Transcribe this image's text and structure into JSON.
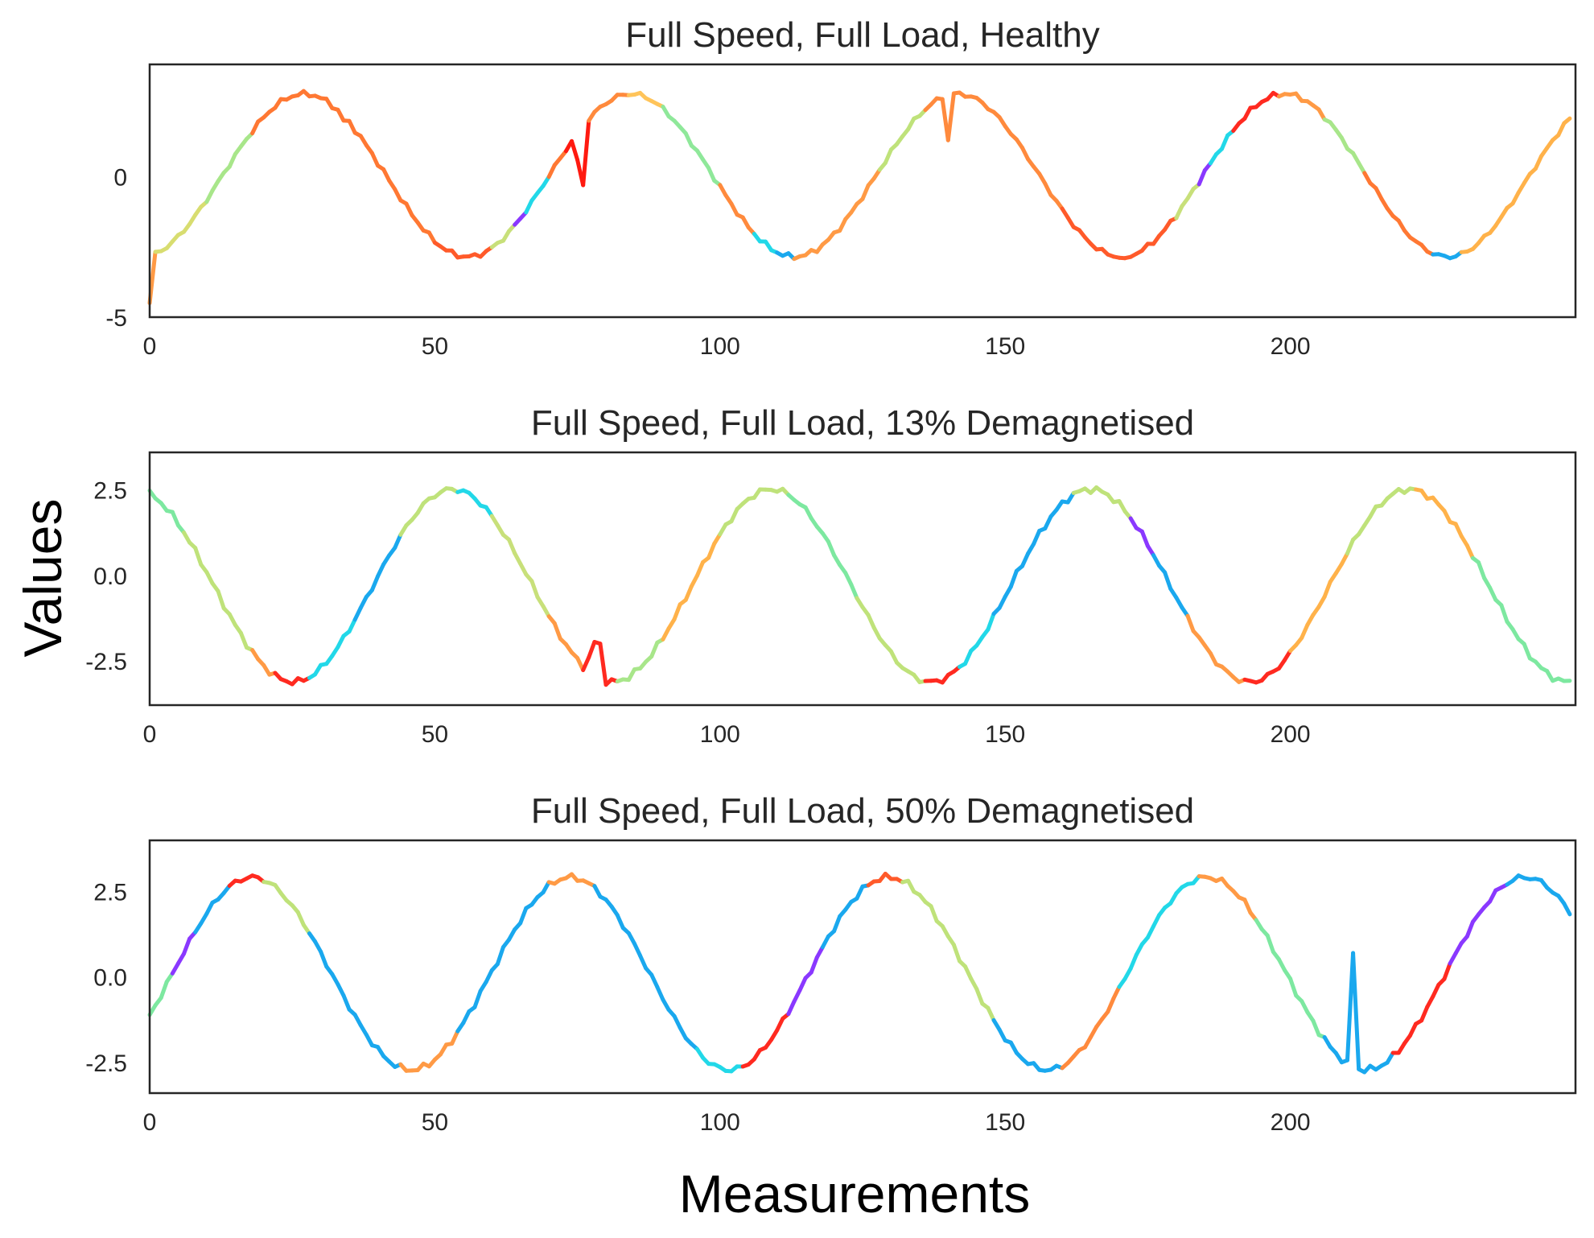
{
  "figure": {
    "xlabel": "Measurements",
    "ylabel": "Values"
  },
  "chart_data": [
    {
      "type": "line",
      "title": "Full Speed, Full Load, Healthy",
      "xlim": [
        0,
        250
      ],
      "ylim": [
        -5,
        4
      ],
      "xticks": [
        0,
        50,
        100,
        150,
        200
      ],
      "yticks": [
        -5,
        0
      ],
      "ytick_labels": [
        "-5",
        "0"
      ],
      "n_points": 250,
      "wave": {
        "amplitude": 2.9,
        "period": 57.3,
        "phase": -1.4,
        "offset": 0.05
      },
      "anomalies": [
        {
          "x": 0,
          "y": -4.5
        },
        {
          "x": 34,
          "y": 2.0
        },
        {
          "x": 75,
          "y": 0.6
        },
        {
          "x": 76,
          "y": -0.3
        },
        {
          "x": 140,
          "y": 1.3
        },
        {
          "x": 171,
          "y": -2.9
        }
      ],
      "color_bands": [
        {
          "from": 0,
          "to": 1,
          "color": "#ff9a45"
        },
        {
          "from": 1,
          "to": 10,
          "color": "#d8dd70"
        },
        {
          "from": 10,
          "to": 18,
          "color": "#a8e68a"
        },
        {
          "from": 18,
          "to": 50,
          "color": "#ff7833"
        },
        {
          "from": 50,
          "to": 60,
          "color": "#ff5a2a"
        },
        {
          "from": 60,
          "to": 64,
          "color": "#c8e07a"
        },
        {
          "from": 64,
          "to": 66,
          "color": "#8a38ff"
        },
        {
          "from": 66,
          "to": 70,
          "color": "#22d8e8"
        },
        {
          "from": 70,
          "to": 73,
          "color": "#ff7833"
        },
        {
          "from": 73,
          "to": 77,
          "color": "#ff1a10"
        },
        {
          "from": 77,
          "to": 84,
          "color": "#ff8a3d"
        },
        {
          "from": 84,
          "to": 90,
          "color": "#ffc45a"
        },
        {
          "from": 90,
          "to": 100,
          "color": "#8fe89a"
        },
        {
          "from": 100,
          "to": 106,
          "color": "#ff8a3d"
        },
        {
          "from": 106,
          "to": 110,
          "color": "#22d8e8"
        },
        {
          "from": 110,
          "to": 113,
          "color": "#1aa8ee"
        },
        {
          "from": 113,
          "to": 128,
          "color": "#ff9a45"
        },
        {
          "from": 128,
          "to": 136,
          "color": "#bfe27a"
        },
        {
          "from": 136,
          "to": 147,
          "color": "#ff8a3d"
        },
        {
          "from": 147,
          "to": 160,
          "color": "#ff8a3d"
        },
        {
          "from": 160,
          "to": 180,
          "color": "#ff5a2a"
        },
        {
          "from": 180,
          "to": 184,
          "color": "#c8e07a"
        },
        {
          "from": 184,
          "to": 186,
          "color": "#8a38ff"
        },
        {
          "from": 186,
          "to": 190,
          "color": "#22d8e8"
        },
        {
          "from": 190,
          "to": 198,
          "color": "#ff2a20"
        },
        {
          "from": 198,
          "to": 206,
          "color": "#ff9a45"
        },
        {
          "from": 206,
          "to": 213,
          "color": "#a8e68a"
        },
        {
          "from": 213,
          "to": 225,
          "color": "#ff7833"
        },
        {
          "from": 225,
          "to": 230,
          "color": "#1aa8ee"
        },
        {
          "from": 230,
          "to": 250,
          "color": "#ffb24a"
        }
      ]
    },
    {
      "type": "line",
      "title": "Full Speed, Full Load, 13% Demagnetised",
      "xlim": [
        0,
        250
      ],
      "ylim": [
        -3.8,
        3.6
      ],
      "xticks": [
        0,
        50,
        100,
        150,
        200
      ],
      "yticks": [
        2.5,
        0.0,
        -2.5
      ],
      "ytick_labels": [
        "2.5",
        "0.0",
        "-2.5"
      ],
      "n_points": 250,
      "wave": {
        "amplitude": 2.82,
        "period": 55.9,
        "phase": 1.88,
        "offset": -0.3
      },
      "anomalies": [
        {
          "x": 77,
          "y": -2.4
        },
        {
          "x": 78,
          "y": -1.95
        },
        {
          "x": 79,
          "y": -2.0
        }
      ],
      "color_bands": [
        {
          "from": 0,
          "to": 6,
          "color": "#7de8a0"
        },
        {
          "from": 6,
          "to": 18,
          "color": "#bfe27a"
        },
        {
          "from": 18,
          "to": 22,
          "color": "#ff9a45"
        },
        {
          "from": 22,
          "to": 28,
          "color": "#ff2a20"
        },
        {
          "from": 28,
          "to": 36,
          "color": "#22d8e8"
        },
        {
          "from": 36,
          "to": 44,
          "color": "#1aa8ee"
        },
        {
          "from": 44,
          "to": 54,
          "color": "#bfe27a"
        },
        {
          "from": 54,
          "to": 60,
          "color": "#22d8e8"
        },
        {
          "from": 60,
          "to": 70,
          "color": "#c8e07a"
        },
        {
          "from": 70,
          "to": 76,
          "color": "#ff9a45"
        },
        {
          "from": 76,
          "to": 82,
          "color": "#ff2a20"
        },
        {
          "from": 82,
          "to": 90,
          "color": "#a8e68a"
        },
        {
          "from": 90,
          "to": 100,
          "color": "#ffb24a"
        },
        {
          "from": 100,
          "to": 112,
          "color": "#bfe27a"
        },
        {
          "from": 112,
          "to": 124,
          "color": "#7de8a0"
        },
        {
          "from": 124,
          "to": 136,
          "color": "#bfe27a"
        },
        {
          "from": 136,
          "to": 142,
          "color": "#ff2a20"
        },
        {
          "from": 142,
          "to": 148,
          "color": "#22d8e8"
        },
        {
          "from": 148,
          "to": 162,
          "color": "#1aa8ee"
        },
        {
          "from": 162,
          "to": 172,
          "color": "#bfe27a"
        },
        {
          "from": 172,
          "to": 176,
          "color": "#8a38ff"
        },
        {
          "from": 176,
          "to": 182,
          "color": "#1aa8ee"
        },
        {
          "from": 182,
          "to": 192,
          "color": "#ff9a45"
        },
        {
          "from": 192,
          "to": 200,
          "color": "#ff2a20"
        },
        {
          "from": 200,
          "to": 210,
          "color": "#ffb24a"
        },
        {
          "from": 210,
          "to": 222,
          "color": "#bfe27a"
        },
        {
          "from": 222,
          "to": 232,
          "color": "#ffb24a"
        },
        {
          "from": 232,
          "to": 250,
          "color": "#7de8a0"
        }
      ]
    },
    {
      "type": "line",
      "title": "Full Speed, Full Load, 50% Demagnetised",
      "xlim": [
        0,
        250
      ],
      "ylim": [
        -3.4,
        4.0
      ],
      "xticks": [
        0,
        50,
        100,
        150,
        200
      ],
      "yticks": [
        2.5,
        0.0,
        -2.5
      ],
      "ytick_labels": [
        "2.5",
        "0.0",
        "-2.5"
      ],
      "n_points": 250,
      "wave": {
        "amplitude": 2.82,
        "period": 55.8,
        "phase": -0.45,
        "offset": 0.1
      },
      "anomalies": [
        {
          "x": 211,
          "y": 0.7
        },
        {
          "x": 212,
          "y": -2.7
        }
      ],
      "color_bands": [
        {
          "from": 0,
          "to": 4,
          "color": "#7de8a0"
        },
        {
          "from": 4,
          "to": 8,
          "color": "#8a38ff"
        },
        {
          "from": 8,
          "to": 14,
          "color": "#1aa8ee"
        },
        {
          "from": 14,
          "to": 20,
          "color": "#ff2a20"
        },
        {
          "from": 20,
          "to": 28,
          "color": "#bfe27a"
        },
        {
          "from": 28,
          "to": 44,
          "color": "#1aa8ee"
        },
        {
          "from": 44,
          "to": 54,
          "color": "#ff9a45"
        },
        {
          "from": 54,
          "to": 70,
          "color": "#1aa8ee"
        },
        {
          "from": 70,
          "to": 78,
          "color": "#ff9a45"
        },
        {
          "from": 78,
          "to": 96,
          "color": "#1aa8ee"
        },
        {
          "from": 96,
          "to": 104,
          "color": "#22d8e8"
        },
        {
          "from": 104,
          "to": 112,
          "color": "#ff2a20"
        },
        {
          "from": 112,
          "to": 118,
          "color": "#8a38ff"
        },
        {
          "from": 118,
          "to": 126,
          "color": "#1aa8ee"
        },
        {
          "from": 126,
          "to": 132,
          "color": "#ff5a2a"
        },
        {
          "from": 132,
          "to": 148,
          "color": "#bfe27a"
        },
        {
          "from": 148,
          "to": 160,
          "color": "#1aa8ee"
        },
        {
          "from": 160,
          "to": 170,
          "color": "#ff8a3d"
        },
        {
          "from": 170,
          "to": 184,
          "color": "#22d8e8"
        },
        {
          "from": 184,
          "to": 194,
          "color": "#ff9a45"
        },
        {
          "from": 194,
          "to": 206,
          "color": "#7de8a0"
        },
        {
          "from": 206,
          "to": 218,
          "color": "#1aa8ee"
        },
        {
          "from": 218,
          "to": 228,
          "color": "#ff2a20"
        },
        {
          "from": 228,
          "to": 238,
          "color": "#8a38ff"
        },
        {
          "from": 238,
          "to": 250,
          "color": "#1aa8ee"
        }
      ]
    }
  ]
}
